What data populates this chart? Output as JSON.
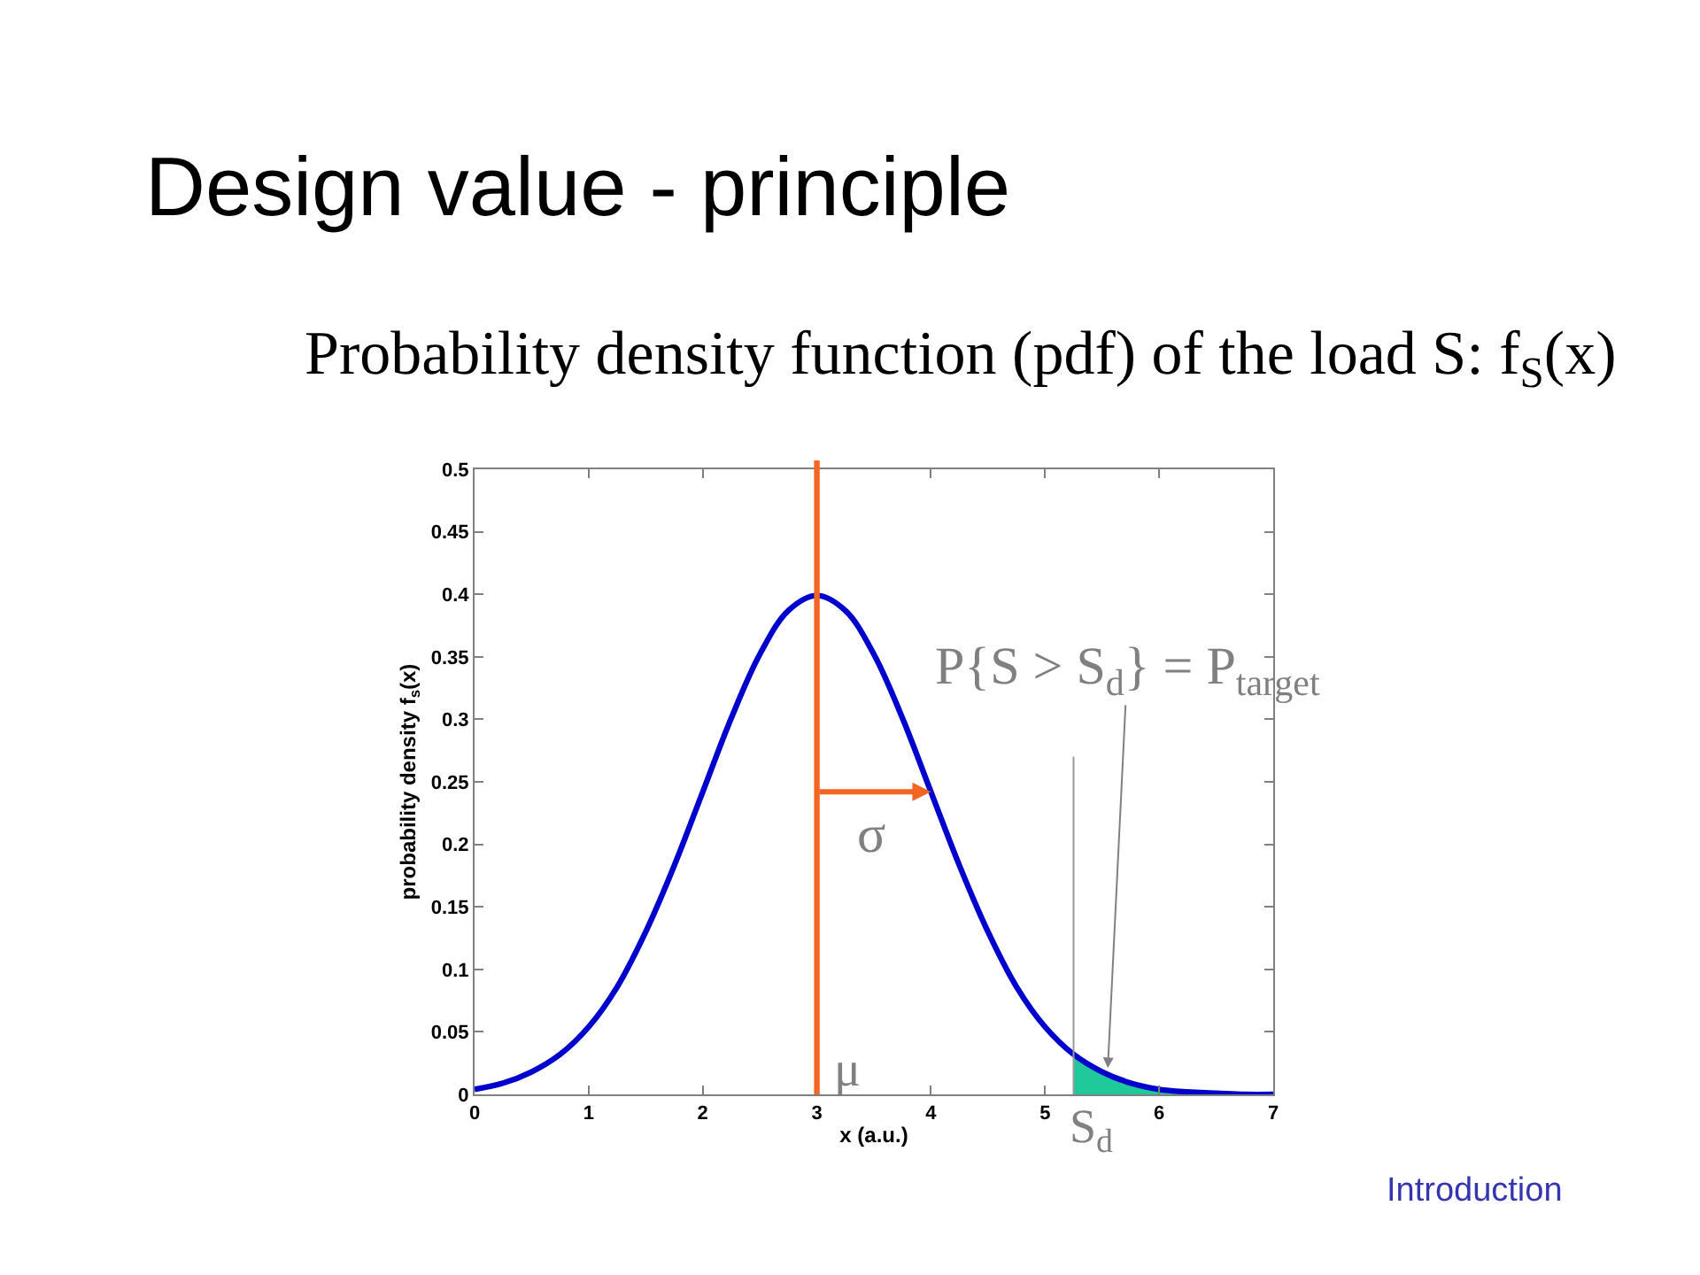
{
  "chart_data": {
    "type": "line",
    "title": "Design value - principle",
    "subtitle": "Probability density function (pdf) of the load S: f$_{S}$(x)",
    "xlabel": "x (a.u.)",
    "ylabel": "probability density f$_{s}$(x)",
    "xlim": [
      0,
      7
    ],
    "ylim": [
      0,
      0.5
    ],
    "xticks": [
      0,
      1,
      2,
      3,
      4,
      5,
      6,
      7
    ],
    "yticks": [
      0,
      0.05,
      0.1,
      0.15,
      0.2,
      0.25,
      0.3,
      0.35,
      0.4,
      0.45,
      0.5
    ],
    "series": [
      {
        "type": "area",
        "color": "#20c99a",
        "x": [
          5.25,
          5.5,
          5.75,
          6,
          6.25,
          6.5,
          6.75,
          7
        ],
        "values": [
          0.032,
          0.018,
          0.009,
          0.004,
          0.002,
          0.001,
          0,
          0
        ]
      },
      {
        "color": "#0000cc",
        "x": [
          0,
          0.25,
          0.5,
          0.75,
          1,
          1.25,
          1.5,
          1.75,
          2,
          2.25,
          2.5,
          2.75,
          3,
          3.25,
          3.5,
          3.75,
          4,
          4.25,
          4.5,
          4.75,
          5,
          5.25,
          5.5,
          5.75,
          6,
          6.25,
          6.5,
          6.75,
          7
        ],
        "values": [
          0.004,
          0.009,
          0.018,
          0.032,
          0.054,
          0.086,
          0.13,
          0.183,
          0.242,
          0.301,
          0.352,
          0.387,
          0.399,
          0.387,
          0.352,
          0.301,
          0.242,
          0.183,
          0.13,
          0.086,
          0.054,
          0.032,
          0.018,
          0.009,
          0.004,
          0.002,
          0.001,
          0,
          0
        ]
      }
    ],
    "ref_lines": [
      {
        "axis": "x",
        "value": 3,
        "label": "μ",
        "color": "#f26522"
      },
      {
        "axis": "x",
        "value": 5.25,
        "label": "S$_{d}$",
        "color": "#999999"
      }
    ],
    "annotations": [
      {
        "text": "σ",
        "x": 4,
        "y": 0.242
      },
      {
        "text": "P{S > S$_{d}$} = P$_{target}$",
        "x": 5.55,
        "y": 0.021
      },
      "Introduction"
    ]
  }
}
